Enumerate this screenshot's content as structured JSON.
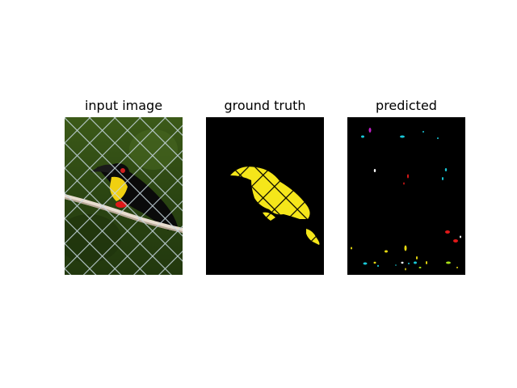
{
  "figure": {
    "panels": [
      {
        "title": "input image",
        "content": "photo of a toucan perched on a branch behind a chain-link fence"
      },
      {
        "title": "ground truth",
        "content": "segmentation mask of the bird in yellow on black"
      },
      {
        "title": "predicted",
        "content": "sparse noisy prediction with small colored blobs on black"
      }
    ]
  },
  "colors": {
    "mask_yellow": "#f5e61a",
    "background": "#000000",
    "fence_grass": "#2d4a14",
    "pred_cyan": "#19c8d8",
    "pred_red": "#e01818",
    "pred_magenta": "#c020c8",
    "pred_yellow": "#e6d810",
    "pred_green": "#a8e018"
  }
}
